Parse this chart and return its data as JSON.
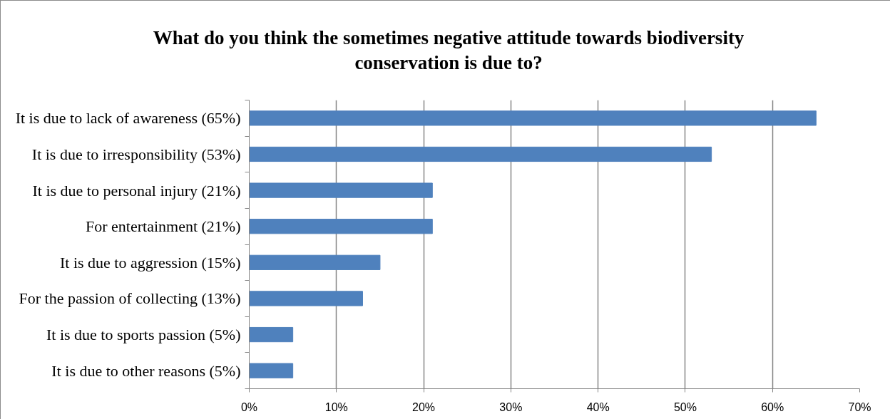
{
  "chart_data": {
    "type": "bar",
    "orientation": "horizontal",
    "title": "What do you think the sometimes negative attitude towards biodiversity conservation is due to?",
    "categories": [
      "It is due to lack of awareness (65%)",
      "It is due to irresponsibility (53%)",
      "It is due to personal injury (21%)",
      "For entertainment (21%)",
      "It is due to aggression (15%)",
      "For the passion of collecting (13%)",
      "It is due to sports passion (5%)",
      "It is due to other reasons (5%)"
    ],
    "values": [
      65,
      53,
      21,
      21,
      15,
      13,
      5,
      5
    ],
    "color": "#4f81bd",
    "xlim": [
      0,
      70
    ],
    "xticks": [
      {
        "value": 0,
        "label": "0%"
      },
      {
        "value": 10,
        "label": "10%"
      },
      {
        "value": 20,
        "label": "20%"
      },
      {
        "value": 30,
        "label": "30%"
      },
      {
        "value": 40,
        "label": "40%"
      },
      {
        "value": 50,
        "label": "50%"
      },
      {
        "value": 60,
        "label": "60%"
      },
      {
        "value": 70,
        "label": "70%"
      }
    ],
    "grid": "x"
  }
}
